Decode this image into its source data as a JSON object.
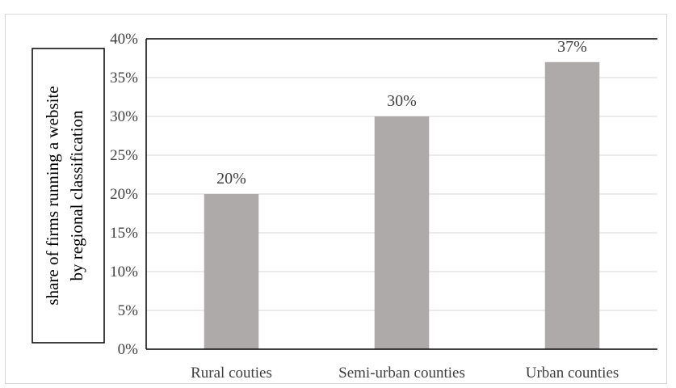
{
  "chart_data": {
    "type": "bar",
    "categories": [
      "Rural couties",
      "Semi-urban counties",
      "Urban counties"
    ],
    "values": [
      0.2,
      0.3,
      0.37
    ],
    "data_labels": [
      "20%",
      "30%",
      "37%"
    ],
    "title": "",
    "xlabel": "",
    "ylabel_lines": [
      "share of firms running a website",
      "by regional classification"
    ],
    "ylim": [
      0,
      0.4
    ],
    "yticks": [
      0,
      0.05,
      0.1,
      0.15,
      0.2,
      0.25,
      0.3,
      0.35,
      0.4
    ],
    "ytick_labels": [
      "0%",
      "5%",
      "10%",
      "15%",
      "20%",
      "25%",
      "30%",
      "35%",
      "40%"
    ],
    "grid": true,
    "legend": "none",
    "colors": {
      "bar": "#aeaaaa",
      "grid": "#d9d9d9",
      "axis": "#000000"
    }
  }
}
